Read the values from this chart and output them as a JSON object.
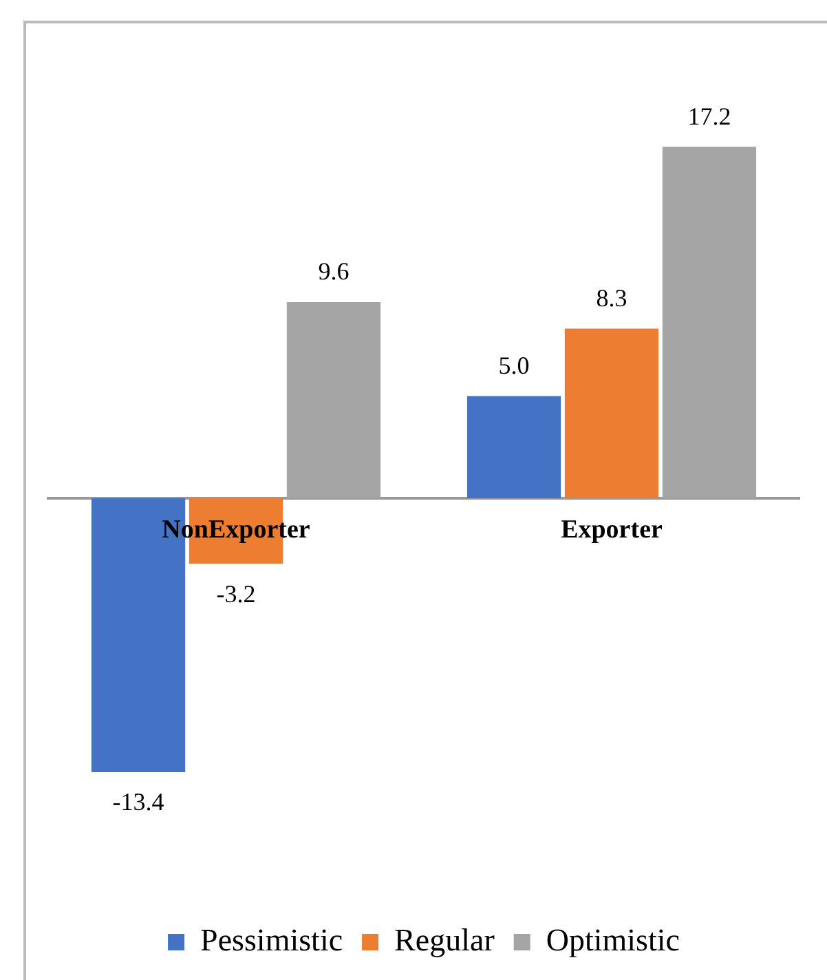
{
  "chart_data": {
    "type": "bar",
    "categories": [
      "NonExporter",
      "Exporter"
    ],
    "series": [
      {
        "name": "Pessimistic",
        "color": "#4472c4",
        "values": [
          -13.4,
          5.0
        ],
        "value_labels": [
          "-13.4",
          "5.0"
        ]
      },
      {
        "name": "Regular",
        "color": "#ed7d31",
        "values": [
          -3.2,
          8.3
        ],
        "value_labels": [
          "-3.2",
          "8.3"
        ]
      },
      {
        "name": "Optimistic",
        "color": "#a5a5a5",
        "values": [
          9.6,
          17.2
        ],
        "value_labels": [
          "9.6",
          "17.2"
        ]
      }
    ],
    "legend": "bottom",
    "grid": false
  }
}
